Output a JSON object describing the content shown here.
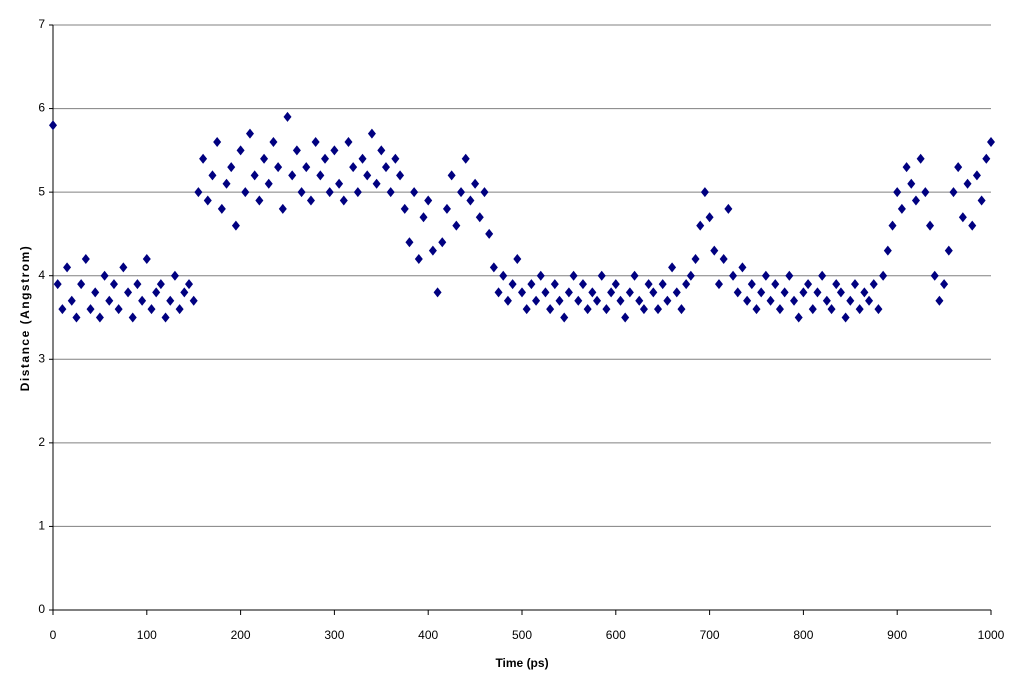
{
  "chart_data": {
    "type": "scatter",
    "xlabel": "Time (ps)",
    "ylabel": "Distance (Angstrom)",
    "color": "#000080",
    "grid": true,
    "xlim": [
      0,
      1000
    ],
    "xticks": [
      0,
      100,
      200,
      300,
      400,
      500,
      600,
      700,
      800,
      900,
      1000
    ],
    "ylim": [
      0,
      7
    ],
    "yticks": [
      0,
      1,
      2,
      3,
      4,
      5,
      6,
      7
    ],
    "x": [
      0,
      5,
      10,
      15,
      20,
      25,
      30,
      35,
      40,
      45,
      50,
      55,
      60,
      65,
      70,
      75,
      80,
      85,
      90,
      95,
      100,
      105,
      110,
      115,
      120,
      125,
      130,
      135,
      140,
      145,
      150,
      155,
      160,
      165,
      170,
      175,
      180,
      185,
      190,
      195,
      200,
      205,
      210,
      215,
      220,
      225,
      230,
      235,
      240,
      245,
      250,
      255,
      260,
      265,
      270,
      275,
      280,
      285,
      290,
      295,
      300,
      305,
      310,
      315,
      320,
      325,
      330,
      335,
      340,
      345,
      350,
      355,
      360,
      365,
      370,
      375,
      380,
      385,
      390,
      395,
      400,
      405,
      410,
      415,
      420,
      425,
      430,
      435,
      440,
      445,
      450,
      455,
      460,
      465,
      470,
      475,
      480,
      485,
      490,
      495,
      500,
      505,
      510,
      515,
      520,
      525,
      530,
      535,
      540,
      545,
      550,
      555,
      560,
      565,
      570,
      575,
      580,
      585,
      590,
      595,
      600,
      605,
      610,
      615,
      620,
      625,
      630,
      635,
      640,
      645,
      650,
      655,
      660,
      665,
      670,
      675,
      680,
      685,
      690,
      695,
      700,
      705,
      710,
      715,
      720,
      725,
      730,
      735,
      740,
      745,
      750,
      755,
      760,
      765,
      770,
      775,
      780,
      785,
      790,
      795,
      800,
      805,
      810,
      815,
      820,
      825,
      830,
      835,
      840,
      845,
      850,
      855,
      860,
      865,
      870,
      875,
      880,
      885,
      890,
      895,
      900,
      905,
      910,
      915,
      920,
      925,
      930,
      935,
      940,
      945,
      950,
      955,
      960,
      965,
      970,
      975,
      980,
      985,
      990,
      995,
      1000
    ],
    "values": [
      5.8,
      3.9,
      3.6,
      4.1,
      3.7,
      3.5,
      3.9,
      4.2,
      3.6,
      3.8,
      3.5,
      4.0,
      3.7,
      3.9,
      3.6,
      4.1,
      3.8,
      3.5,
      3.9,
      3.7,
      4.2,
      3.6,
      3.8,
      3.9,
      3.5,
      3.7,
      4.0,
      3.6,
      3.8,
      3.9,
      3.7,
      5.0,
      5.4,
      4.9,
      5.2,
      5.6,
      4.8,
      5.1,
      5.3,
      4.6,
      5.5,
      5.0,
      5.7,
      5.2,
      4.9,
      5.4,
      5.1,
      5.6,
      5.3,
      4.8,
      5.9,
      5.2,
      5.5,
      5.0,
      5.3,
      4.9,
      5.6,
      5.2,
      5.4,
      5.0,
      5.5,
      5.1,
      4.9,
      5.6,
      5.3,
      5.0,
      5.4,
      5.2,
      5.7,
      5.1,
      5.5,
      5.3,
      5.0,
      5.4,
      5.2,
      4.8,
      4.4,
      5.0,
      4.2,
      4.7,
      4.9,
      4.3,
      3.8,
      4.4,
      4.8,
      5.2,
      4.6,
      5.0,
      5.4,
      4.9,
      5.1,
      4.7,
      5.0,
      4.5,
      4.1,
      3.8,
      4.0,
      3.7,
      3.9,
      4.2,
      3.8,
      3.6,
      3.9,
      3.7,
      4.0,
      3.8,
      3.6,
      3.9,
      3.7,
      3.5,
      3.8,
      4.0,
      3.7,
      3.9,
      3.6,
      3.8,
      3.7,
      4.0,
      3.6,
      3.8,
      3.9,
      3.7,
      3.5,
      3.8,
      4.0,
      3.7,
      3.6,
      3.9,
      3.8,
      3.6,
      3.9,
      3.7,
      4.1,
      3.8,
      3.6,
      3.9,
      4.0,
      4.2,
      4.6,
      5.0,
      4.7,
      4.3,
      3.9,
      4.2,
      4.8,
      4.0,
      3.8,
      4.1,
      3.7,
      3.9,
      3.6,
      3.8,
      4.0,
      3.7,
      3.9,
      3.6,
      3.8,
      4.0,
      3.7,
      3.5,
      3.8,
      3.9,
      3.6,
      3.8,
      4.0,
      3.7,
      3.6,
      3.9,
      3.8,
      3.5,
      3.7,
      3.9,
      3.6,
      3.8,
      3.7,
      3.9,
      3.6,
      4.0,
      4.3,
      4.6,
      5.0,
      4.8,
      5.3,
      5.1,
      4.9,
      5.4,
      5.0,
      4.6,
      4.0,
      3.7,
      3.9,
      4.3,
      5.0,
      5.3,
      4.7,
      5.1,
      4.6,
      5.2,
      4.9,
      5.4,
      5.6
    ]
  }
}
